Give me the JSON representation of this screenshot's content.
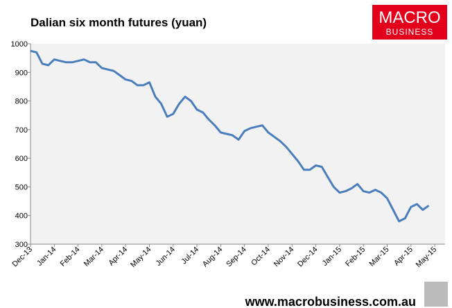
{
  "chart_data": {
    "type": "line",
    "title": "Dalian six month futures (yuan)",
    "logo": [
      "MACRO",
      "BUSINESS"
    ],
    "source": "www.macrobusiness.com.au",
    "color": "#4a7ebb",
    "grid": false,
    "categories": [
      "Dec-13",
      null,
      null,
      null,
      "Jan-14",
      null,
      null,
      null,
      "Feb-14",
      null,
      null,
      null,
      "Mar-14",
      null,
      null,
      null,
      "Apr-14",
      null,
      null,
      null,
      "May-14",
      null,
      null,
      null,
      "Jun-14",
      null,
      null,
      null,
      "Jul-14",
      null,
      null,
      null,
      "Aug-14",
      null,
      null,
      null,
      "Sep-14",
      null,
      null,
      null,
      "Oct-14",
      null,
      null,
      null,
      "Nov-14",
      null,
      null,
      null,
      "Dec-14",
      null,
      null,
      null,
      "Jan-15",
      null,
      null,
      null,
      "Feb-15",
      null,
      null,
      null,
      "Mar-15",
      null,
      null,
      null,
      "Apr-15",
      null,
      null,
      null,
      "May-15"
    ],
    "values": [
      975,
      970,
      930,
      925,
      945,
      940,
      935,
      935,
      940,
      945,
      935,
      935,
      915,
      910,
      905,
      890,
      875,
      870,
      855,
      855,
      865,
      815,
      790,
      745,
      755,
      790,
      815,
      800,
      770,
      760,
      735,
      715,
      690,
      685,
      680,
      665,
      695,
      705,
      710,
      715,
      690,
      675,
      660,
      640,
      615,
      590,
      560,
      560,
      575,
      570,
      535,
      500,
      480,
      485,
      495,
      510,
      485,
      480,
      490,
      480,
      460,
      420,
      380,
      390,
      430,
      440,
      420,
      435,
      null
    ],
    "ylim": [
      300,
      1000
    ],
    "yticks": [
      300,
      400,
      500,
      600,
      700,
      800,
      900,
      1000
    ]
  }
}
